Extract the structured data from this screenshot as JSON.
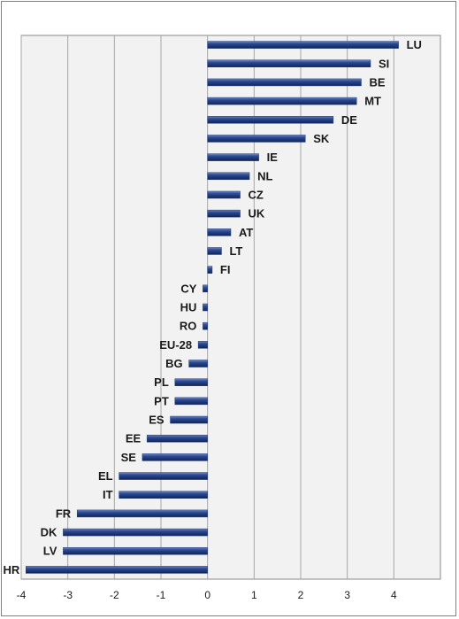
{
  "chart_data": {
    "type": "bar",
    "orientation": "horizontal",
    "categories": [
      "LU",
      "SI",
      "BE",
      "MT",
      "DE",
      "SK",
      "IE",
      "NL",
      "CZ",
      "UK",
      "AT",
      "LT",
      "FI",
      "CY",
      "HU",
      "RO",
      "EU-28",
      "BG",
      "PL",
      "PT",
      "ES",
      "EE",
      "SE",
      "EL",
      "IT",
      "FR",
      "DK",
      "LV",
      "HR"
    ],
    "values": [
      4.1,
      3.5,
      3.3,
      3.2,
      2.7,
      2.1,
      1.1,
      0.9,
      0.7,
      0.7,
      0.5,
      0.3,
      0.1,
      -0.1,
      -0.1,
      -0.1,
      -0.2,
      -0.4,
      -0.7,
      -0.7,
      -0.8,
      -1.3,
      -1.4,
      -1.9,
      -1.9,
      -2.8,
      -3.1,
      -3.1,
      -3.9
    ],
    "xlim": [
      -4,
      5
    ],
    "x_ticks": [
      "-4",
      "-3",
      "-2",
      "-1",
      "0",
      "1",
      "2",
      "3",
      "4"
    ],
    "grid": "vertical",
    "bar_color": "#1f3a7a",
    "plot_background": "#f2f2f2",
    "title": "",
    "xlabel": "",
    "ylabel": ""
  }
}
